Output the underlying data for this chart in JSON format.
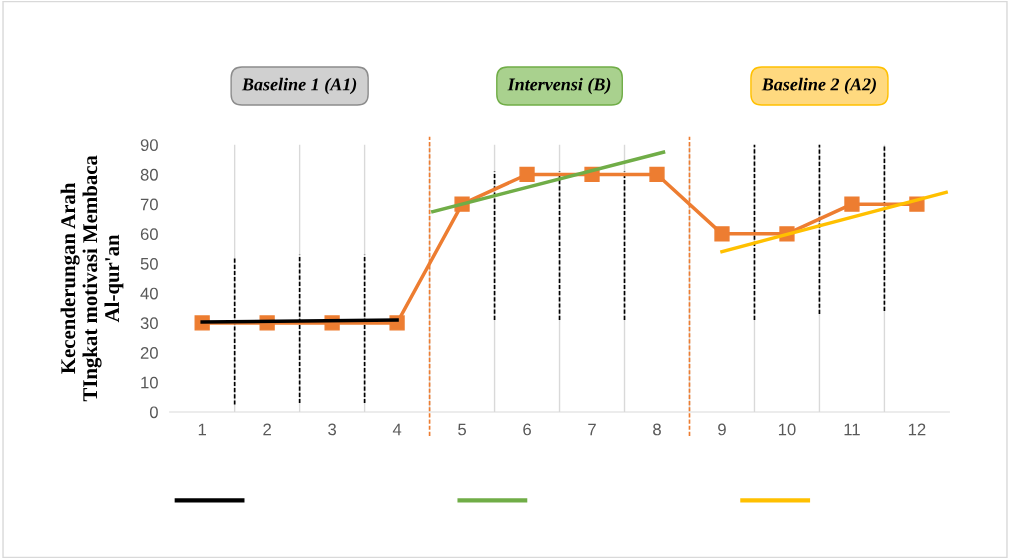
{
  "chart_data": {
    "type": "line",
    "ylabel": "Kecenderungan Arah\nTIngkat motivasi Membaca\nAl-qur'an",
    "annotations": [
      "Baseline 1 (A1)",
      "Intervensi (B)",
      "Baseline 2 (A2)"
    ],
    "x": [
      1,
      2,
      3,
      4,
      5,
      6,
      7,
      8,
      9,
      10,
      11,
      12
    ],
    "xlim": [
      0.5,
      12.5
    ],
    "xticks": [
      1,
      2,
      3,
      4,
      5,
      6,
      7,
      8,
      9,
      10,
      11,
      12
    ],
    "ylim": [
      0,
      90
    ],
    "yticks": [
      0,
      10,
      20,
      30,
      40,
      50,
      60,
      70,
      80,
      90
    ],
    "grid": "x",
    "ref_lines": [
      {
        "axis": "x",
        "value": 4.5,
        "color": "#ed7d31",
        "line_style": "dashed"
      },
      {
        "axis": "x",
        "value": 8.5,
        "color": "#ed7d31",
        "line_style": "dashed"
      }
    ],
    "series": [
      {
        "color": "#ed7d31",
        "marker": "square",
        "values": [
          30,
          30,
          30,
          30,
          70,
          80,
          80,
          80,
          60,
          60,
          70,
          70
        ]
      },
      {
        "color": "#000000",
        "marker": "none",
        "x": [
          1,
          4
        ],
        "values": [
          30.3,
          31
        ]
      },
      {
        "color": "#70ad47",
        "marker": "none",
        "x": [
          4.55,
          8.1
        ],
        "values": [
          67.5,
          87.5
        ]
      },
      {
        "color": "#ffc000",
        "marker": "none",
        "x": [
          9,
          12.45
        ],
        "values": [
          54,
          74
        ]
      },
      {
        "color": "#000000",
        "marker": "none",
        "line_style": "dashed",
        "x": [
          1.5,
          1.5
        ],
        "values": [
          2.5,
          52
        ]
      },
      {
        "color": "#000000",
        "marker": "none",
        "line_style": "dashed",
        "x": [
          2.5,
          2.5
        ],
        "values": [
          3,
          53
        ]
      },
      {
        "color": "#000000",
        "marker": "none",
        "line_style": "dashed",
        "x": [
          3.5,
          3.5
        ],
        "values": [
          3,
          53
        ]
      },
      {
        "color": "#000000",
        "marker": "none",
        "line_style": "dashed",
        "x": [
          5.5,
          5.5
        ],
        "values": [
          31,
          81
        ]
      },
      {
        "color": "#000000",
        "marker": "none",
        "line_style": "dashed",
        "x": [
          6.5,
          6.5
        ],
        "values": [
          31,
          81
        ]
      },
      {
        "color": "#000000",
        "marker": "none",
        "line_style": "dashed",
        "x": [
          7.5,
          7.5
        ],
        "values": [
          31,
          81
        ]
      },
      {
        "color": "#000000",
        "marker": "none",
        "line_style": "dashed",
        "x": [
          9.5,
          9.5
        ],
        "values": [
          31,
          90
        ]
      },
      {
        "color": "#000000",
        "marker": "none",
        "line_style": "dashed",
        "x": [
          10.5,
          10.5
        ],
        "values": [
          33,
          90
        ]
      },
      {
        "color": "#000000",
        "marker": "none",
        "line_style": "dashed",
        "x": [
          11.5,
          11.5
        ],
        "values": [
          34,
          90
        ]
      }
    ]
  }
}
